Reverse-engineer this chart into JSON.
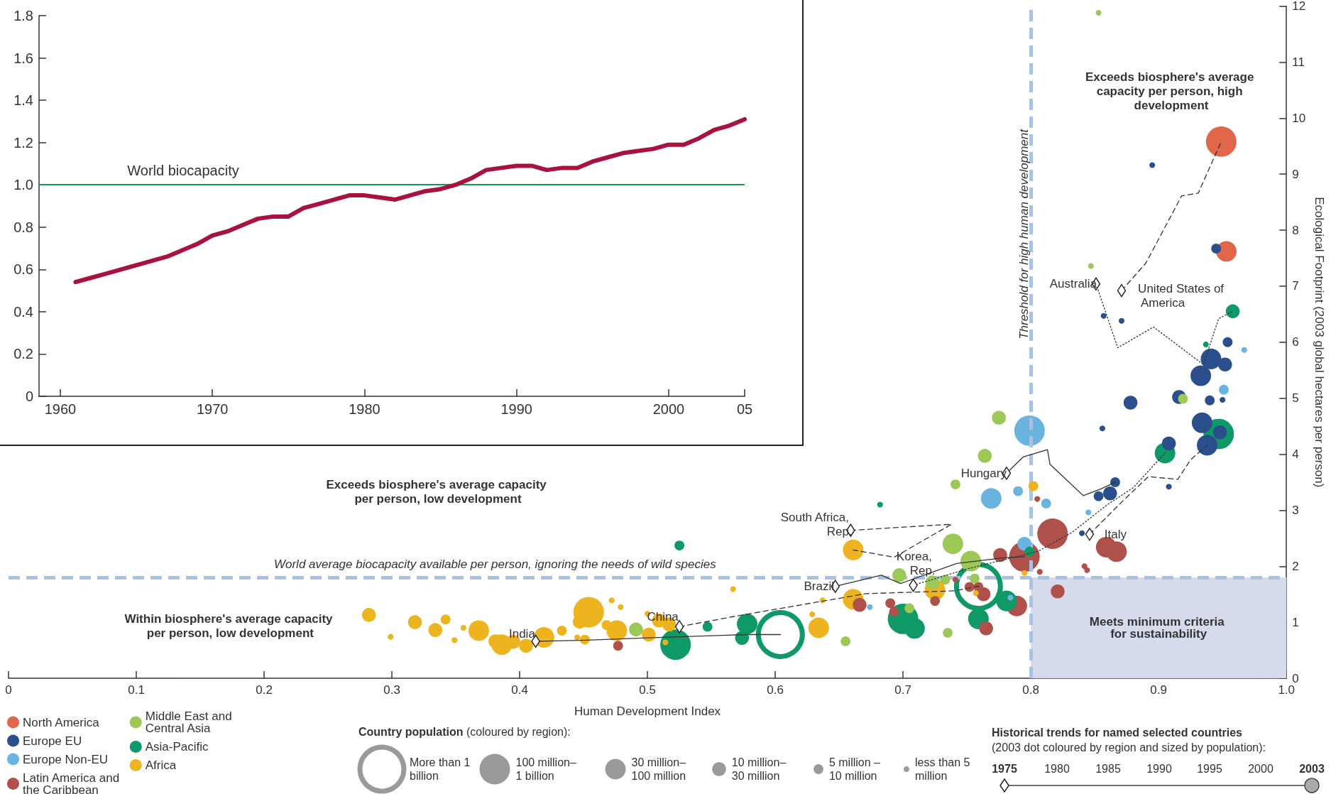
{
  "chart_data": [
    {
      "type": "line",
      "x": [
        1961,
        1962,
        1963,
        1964,
        1965,
        1966,
        1967,
        1968,
        1969,
        1970,
        1971,
        1972,
        1973,
        1974,
        1975,
        1976,
        1977,
        1978,
        1979,
        1980,
        1981,
        1982,
        1983,
        1984,
        1985,
        1986,
        1987,
        1988,
        1989,
        1990,
        1991,
        1992,
        1993,
        1994,
        1995,
        1996,
        1997,
        1998,
        1999,
        2000,
        2001,
        2002,
        2003,
        2004,
        2005
      ],
      "values": [
        0.54,
        0.56,
        0.58,
        0.6,
        0.62,
        0.64,
        0.66,
        0.69,
        0.72,
        0.76,
        0.78,
        0.81,
        0.84,
        0.85,
        0.85,
        0.89,
        0.91,
        0.93,
        0.95,
        0.95,
        0.94,
        0.93,
        0.95,
        0.97,
        0.98,
        1.0,
        1.03,
        1.07,
        1.08,
        1.09,
        1.09,
        1.07,
        1.08,
        1.08,
        1.11,
        1.13,
        1.15,
        1.16,
        1.17,
        1.19,
        1.19,
        1.22,
        1.26,
        1.28,
        1.31
      ],
      "color": "#a8123e",
      "xlim": [
        1958.6,
        2005
      ],
      "xticks": [
        1960,
        1970,
        1980,
        1990,
        2000,
        {
          "value": 2005,
          "label": "05"
        }
      ],
      "ylim": [
        0,
        1.8
      ],
      "yticks": [
        0,
        0.2,
        0.4,
        0.6,
        0.8,
        {
          "value": 1,
          "label": "1.0"
        },
        1.2,
        1.4,
        1.6,
        1.8
      ],
      "ref_lines": [
        {
          "axis": "y",
          "value": 1,
          "label": "World biocapacity",
          "color": "#1a9a50"
        }
      ]
    },
    {
      "type": "bubble",
      "xlabel": "Human Development Index",
      "ylabel": "Ecological Footprint (2003 global hectares per person)",
      "xlim": [
        0,
        1
      ],
      "xticks": [
        0,
        0.1,
        0.2,
        0.3,
        0.4,
        0.5,
        0.6,
        0.7,
        0.8,
        0.9,
        {
          "value": 1,
          "label": "1.0"
        }
      ],
      "ylim": [
        0,
        12
      ],
      "yticks": [
        0,
        1,
        2,
        3,
        4,
        5,
        6,
        7,
        8,
        9,
        10,
        11,
        12
      ],
      "legend": "bottom left",
      "legend_title": "Country population (coloured by region):",
      "size_legend": [
        {
          "value": 1,
          "label": "More than 1 billion"
        },
        {
          "value": 0.48,
          "label": "100 million–1 billion"
        },
        {
          "value": 0.22,
          "label": "30 million–100 million"
        },
        {
          "value": 0.1,
          "label": "10 million–30 million"
        },
        {
          "value": 0.05,
          "label": "5 million – 10 million"
        },
        {
          "value": 0.017,
          "label": "less than 5 million"
        }
      ],
      "series": [
        {
          "name": "North America",
          "color": "#e0674a",
          "x": [
            0.949,
            0.953
          ],
          "values": [
            9.58,
            7.62
          ],
          "sizes": [
            0.48,
            0.22
          ]
        },
        {
          "name": "Europe EU",
          "color": "#2b4e8c",
          "x": [
            0.895,
            0.945,
            0.857,
            0.871,
            0.954,
            0.933,
            0.941,
            0.952,
            0.916,
            0.94,
            0.95,
            0.878,
            0.856,
            0.934,
            0.948,
            0.908,
            0.938,
            0.908,
            0.866,
            0.862,
            0.853,
            0.84
          ],
          "values": [
            9.16,
            7.67,
            6.47,
            6.38,
            6.0,
            5.4,
            5.7,
            5.6,
            5.02,
            4.96,
            4.97,
            4.92,
            4.46,
            4.56,
            4.39,
            4.19,
            4.16,
            3.42,
            3.5,
            3.3,
            3.25,
            2.59
          ],
          "sizes": [
            0.017,
            0.05,
            0.017,
            0.017,
            0.05,
            0.22,
            0.22,
            0.1,
            0.1,
            0.05,
            0.017,
            0.1,
            0.017,
            0.22,
            0.1,
            0.1,
            0.22,
            0.017,
            0.05,
            0.1,
            0.05,
            0.017
          ]
        },
        {
          "name": "Europe Non-EU",
          "color": "#6ab4e0",
          "x": [
            0.799,
            0.769,
            0.79,
            0.812,
            0.795,
            0.674,
            0.784,
            0.845,
            0.951,
            0.967
          ],
          "values": [
            4.42,
            3.21,
            3.34,
            3.12,
            2.4,
            1.27,
            1.44,
            2.96,
            5.15,
            5.86
          ],
          "sizes": [
            0.48,
            0.22,
            0.05,
            0.05,
            0.1,
            0.017,
            0.017,
            0.017,
            0.05,
            0.017
          ]
        },
        {
          "name": "Latin America and the Caribbean",
          "color": "#b0504a",
          "x": [
            0.477,
            0.666,
            0.69,
            0.693,
            0.725,
            0.741,
            0.752,
            0.759,
            0.763,
            0.765,
            0.789,
            0.776,
            0.795,
            0.807,
            0.817,
            0.821,
            0.805,
            0.859,
            0.867,
            0.842,
            0.844
          ],
          "values": [
            0.58,
            1.31,
            1.34,
            1.19,
            1.38,
            1.76,
            1.63,
            1.63,
            1.5,
            0.89,
            1.29,
            2.2,
            2.17,
            1.9,
            2.58,
            1.55,
            3.2,
            2.34,
            2.26,
            2.0,
            1.93
          ],
          "sizes": [
            0.05,
            0.1,
            0.05,
            0.05,
            0.05,
            0.017,
            0.05,
            0.05,
            0.1,
            0.1,
            0.22,
            0.1,
            0.48,
            0.017,
            0.48,
            0.1,
            0.017,
            0.22,
            0.22,
            0.017,
            0.017
          ]
        },
        {
          "name": "Middle East and Central Asia",
          "color": "#9cc858",
          "x": [
            0.491,
            0.655,
            0.705,
            0.697,
            0.739,
            0.753,
            0.723,
            0.733,
            0.756,
            0.735,
            0.741,
            0.764,
            0.775,
            0.853,
            0.847,
            0.919
          ],
          "values": [
            0.87,
            0.66,
            1.25,
            1.84,
            2.4,
            2.09,
            1.71,
            1.76,
            1.78,
            0.81,
            3.46,
            3.97,
            4.65,
            11.88,
            7.36,
            4.99
          ],
          "sizes": [
            0.1,
            0.05,
            0.05,
            0.1,
            0.22,
            0.22,
            0.1,
            0.05,
            0.05,
            0.05,
            0.05,
            0.1,
            0.1,
            0.017,
            0.017,
            0.05
          ]
        },
        {
          "name": "Asia-Pacific",
          "color": "#0e9966",
          "x": [
            0.604,
            0.759,
            0.522,
            0.547,
            0.578,
            0.574,
            0.682,
            0.525,
            0.7,
            0.709,
            0.781,
            0.759,
            0.799,
            0.905,
            0.947,
            0.958,
            0.937
          ],
          "values": [
            0.78,
            1.64,
            0.6,
            0.92,
            0.97,
            0.72,
            3.1,
            2.37,
            1.06,
            0.89,
            1.38,
            1.06,
            2.26,
            4.02,
            4.36,
            6.55,
            5.96
          ],
          "sizes": [
            1,
            1,
            0.48,
            0.05,
            0.22,
            0.1,
            0.017,
            0.05,
            0.48,
            0.22,
            0.22,
            0.22,
            0.05,
            0.22,
            0.48,
            0.1,
            0.017
          ]
        },
        {
          "name": "Africa",
          "color": "#eeb420",
          "x": [
            0.282,
            0.299,
            0.318,
            0.334,
            0.342,
            0.356,
            0.349,
            0.368,
            0.381,
            0.386,
            0.395,
            0.405,
            0.419,
            0.433,
            0.445,
            0.451,
            0.454,
            0.447,
            0.472,
            0.479,
            0.468,
            0.476,
            0.5,
            0.509,
            0.501,
            0.517,
            0.514,
            0.567,
            0.634,
            0.629,
            0.637,
            0.661,
            0.661,
            0.725,
            0.757,
            0.795,
            0.802
          ],
          "values": [
            1.13,
            0.74,
            1.0,
            0.86,
            1.05,
            0.9,
            0.68,
            0.85,
            0.66,
            0.6,
            0.65,
            0.58,
            0.73,
            0.85,
            0.73,
            0.69,
            1.18,
            1.01,
            1.39,
            1.27,
            0.95,
            0.85,
            1.15,
            1.03,
            0.78,
            0.96,
            0.64,
            1.59,
            0.9,
            1.14,
            1.39,
            1.41,
            2.29,
            1.58,
            1.52,
            1.88,
            3.43
          ],
          "sizes": [
            0.1,
            0.017,
            0.1,
            0.1,
            0.05,
            0.017,
            0.017,
            0.22,
            0.1,
            0.22,
            0.1,
            0.1,
            0.22,
            0.05,
            0.017,
            0.05,
            0.48,
            0.1,
            0.017,
            0.017,
            0.05,
            0.22,
            0.017,
            0.1,
            0.1,
            0.1,
            0.017,
            0.017,
            0.22,
            0.017,
            0.017,
            0.22,
            0.22,
            0.22,
            0.017,
            0.017,
            0.05
          ]
        },
        {
          "type": "scatter",
          "color": "#ffffff",
          "marker": "diamond",
          "x": [
            0.871,
            0.851,
            0.846,
            0.708,
            0.781,
            0.647,
            0.659,
            0.525,
            0.4125
          ],
          "values": [
            6.92,
            7.04,
            2.57,
            1.66,
            3.66,
            1.64,
            2.64,
            0.92,
            0.66
          ]
        },
        {
          "type": "line",
          "color": "#333333",
          "line_style": "dashed",
          "x": [
            0.871,
            0.89,
            0.918,
            0.931,
            0.949
          ],
          "values": [
            6.92,
            7.41,
            8.61,
            8.66,
            9.58
          ]
        },
        {
          "type": "line",
          "color": "#333333",
          "line_style": "dotted",
          "x": [
            0.851,
            0.868,
            0.896,
            0.935,
            0.947,
            0.958
          ],
          "values": [
            7.04,
            5.9,
            6.27,
            5.6,
            6.42,
            6.55
          ]
        },
        {
          "type": "line",
          "color": "#333333",
          "line_style": "dashed",
          "x": [
            0.846,
            0.869,
            0.892,
            0.915,
            0.925,
            0.938
          ],
          "values": [
            2.57,
            3.1,
            3.6,
            3.55,
            3.9,
            4.16
          ]
        },
        {
          "type": "line",
          "color": "#333333",
          "line_style": "dotted",
          "x": [
            0.708,
            0.75,
            0.806,
            0.832,
            0.86,
            0.88,
            0.905
          ],
          "values": [
            1.66,
            1.95,
            2.27,
            2.6,
            3.1,
            3.4,
            4.02
          ]
        },
        {
          "type": "line",
          "color": "#333333",
          "line_style": "solid",
          "x": [
            0.781,
            0.794,
            0.813,
            0.815,
            0.841,
            0.855,
            0.866
          ],
          "values": [
            3.66,
            3.95,
            4.08,
            3.82,
            3.26,
            3.38,
            3.5
          ]
        },
        {
          "type": "line",
          "color": "#333333",
          "line_style": "solid",
          "x": [
            0.647,
            0.683,
            0.698,
            0.742,
            0.779,
            0.795
          ],
          "values": [
            1.64,
            1.84,
            1.69,
            2.05,
            2.15,
            2.17
          ]
        },
        {
          "type": "line",
          "color": "#333333",
          "line_style": "dashed",
          "x": [
            0.659,
            0.738,
            0.693,
            0.661
          ],
          "values": [
            2.64,
            2.75,
            2.16,
            2.29
          ]
        },
        {
          "type": "line",
          "color": "#333333",
          "line_style": "dashed",
          "x": [
            0.525,
            0.567,
            0.671,
            0.74,
            0.759
          ],
          "values": [
            0.92,
            1.1,
            1.51,
            1.56,
            1.64
          ]
        },
        {
          "type": "line",
          "color": "#333333",
          "line_style": "solid",
          "x": [
            0.4125,
            0.453,
            0.5,
            0.578,
            0.604
          ],
          "values": [
            0.66,
            0.68,
            0.72,
            0.78,
            0.78
          ]
        }
      ],
      "ref_lines": [
        {
          "axis": "x",
          "value": 0.8,
          "label": "Threshold for high human development",
          "color": "#a9c2e2",
          "line_style": "dashed"
        },
        {
          "axis": "y",
          "value": 1.8,
          "label": "World average biocapacity available per person, ignoring the needs of wild species",
          "color": "#a9c2e2",
          "line_style": "dashed"
        }
      ],
      "bands": [
        {
          "axis": "y",
          "from": 0,
          "to": 1.8,
          "label": "Meets minimum criteria for sustainability",
          "color": "#d5dbec"
        }
      ],
      "annotations": [
        "Exceeds biosphere's average capacity per person, high development",
        "Exceeds biosphere's average capacity per person, low development",
        "Within biosphere's average capacity per person, low development",
        "Historical trends for named selected countries",
        "(2003 dot coloured by region and sized by population):",
        "1975",
        "1980",
        "1985",
        "1990",
        "1995",
        "2000",
        "2003",
        {
          "text": "United States of America",
          "x": 0.871,
          "y": 6.92
        },
        {
          "text": "Australia",
          "x": 0.851,
          "y": 7.04
        },
        {
          "text": "Italy",
          "x": 0.846,
          "y": 2.57
        },
        {
          "text": "Korea, Rep.",
          "x": 0.708,
          "y": 1.66
        },
        {
          "text": "Hungary",
          "x": 0.781,
          "y": 3.66
        },
        {
          "text": "Brazil",
          "x": 0.647,
          "y": 1.64
        },
        {
          "text": "South Africa, Rep.",
          "x": 0.659,
          "y": 2.64
        },
        {
          "text": "China",
          "x": 0.525,
          "y": 0.92
        },
        {
          "text": "India",
          "x": 0.4125,
          "y": 0.66
        }
      ]
    }
  ]
}
